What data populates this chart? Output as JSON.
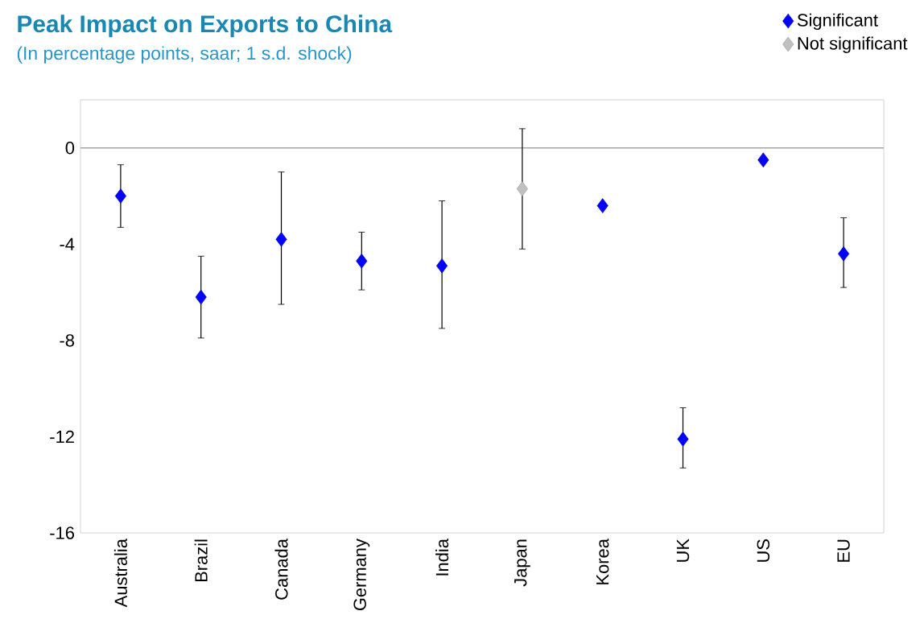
{
  "chart_data": {
    "type": "scatter",
    "title": "Peak Impact on Exports to China",
    "subtitle": "(In percentage points, saar; 1 s.d. shock)",
    "categories": [
      "Australia",
      "Brazil",
      "Canada",
      "Germany",
      "India",
      "Japan",
      "Korea",
      "UK",
      "US",
      "EU"
    ],
    "ylim": [
      -16,
      2
    ],
    "yticks": [
      -16,
      -12,
      -8,
      -4,
      0
    ],
    "marker": "diamond",
    "legend": "top right",
    "grid": false,
    "ref_lines": [
      {
        "axis": "y",
        "value": 0,
        "color": "#a6a6a6"
      }
    ],
    "series": [
      {
        "name": "Significant",
        "color": "#0000ff",
        "values": [
          -2.0,
          -6.2,
          -3.8,
          -4.7,
          -4.9,
          null,
          -2.4,
          -12.1,
          -0.5,
          -4.4
        ],
        "errors": [
          [
            -3.3,
            -0.7
          ],
          [
            -7.9,
            -4.5
          ],
          [
            -6.5,
            -1.0
          ],
          [
            -5.9,
            -3.5
          ],
          [
            -7.5,
            -2.2
          ],
          null,
          null,
          [
            -13.3,
            -10.8
          ],
          null,
          [
            -5.8,
            -2.9
          ]
        ]
      },
      {
        "name": "Not significant",
        "color": "#c0c0c0",
        "values": [
          null,
          null,
          null,
          null,
          null,
          -1.7,
          null,
          null,
          null,
          null
        ],
        "errors": [
          null,
          null,
          null,
          null,
          null,
          [
            -4.2,
            0.8
          ],
          null,
          null,
          null,
          null
        ]
      }
    ]
  }
}
